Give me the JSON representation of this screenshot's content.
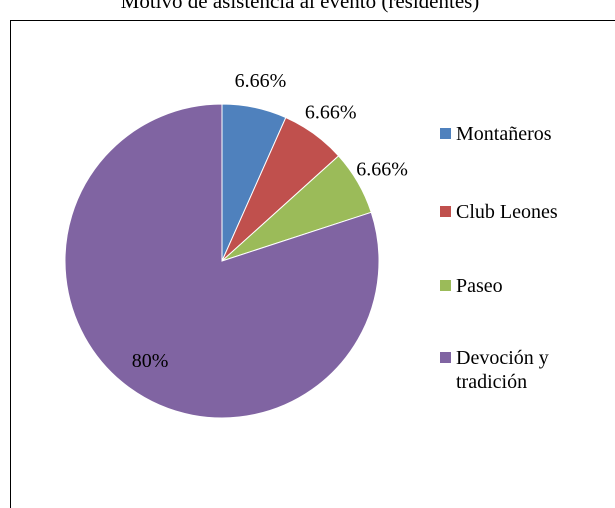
{
  "chart_data": {
    "type": "pie",
    "title": "Motivo de asistencia al evento (residentes)",
    "categories": [
      "Montañeros",
      "Club Leones",
      "Paseo",
      "Devoción y tradición"
    ],
    "values": [
      6.66,
      6.66,
      6.66,
      80
    ],
    "value_labels": [
      "6.66%",
      "6.66%",
      "6.66%",
      "80%"
    ],
    "colors": [
      "#4f81bd",
      "#c0504d",
      "#9bbb59",
      "#8064a2"
    ],
    "legend": "right"
  }
}
